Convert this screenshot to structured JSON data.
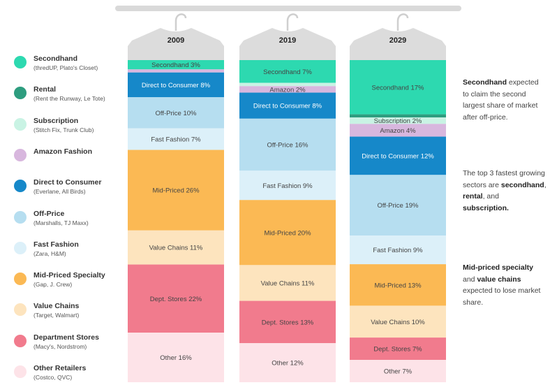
{
  "legend": [
    {
      "key": "secondhand",
      "name": "Secondhand",
      "sub": "(thredUP, Plato's Closet)",
      "color": "#2dd9b0"
    },
    {
      "key": "rental",
      "name": "Rental",
      "sub": "(Rent the Runway, Le Tote)",
      "color": "#2e9d7f"
    },
    {
      "key": "subscription",
      "name": "Subscription",
      "sub": "(Stitch Fix, Trunk Club)",
      "color": "#c9f3e4"
    },
    {
      "key": "amazon",
      "name": "Amazon Fashion",
      "sub": "",
      "color": "#d8b7de"
    },
    {
      "key": "dtc",
      "name": "Direct to Consumer",
      "sub": "(Everlane, All Birds)",
      "color": "#1688c9"
    },
    {
      "key": "offprice",
      "name": "Off-Price",
      "sub": "(Marshalls, TJ Maxx)",
      "color": "#b6def0"
    },
    {
      "key": "fastfashion",
      "name": "Fast Fashion",
      "sub": "(Zara, H&M)",
      "color": "#dcf0f9"
    },
    {
      "key": "midpriced",
      "name": "Mid-Priced Specialty",
      "sub": "(Gap, J. Crew)",
      "color": "#fbb954"
    },
    {
      "key": "valuechains",
      "name": "Value Chains",
      "sub": "(Target, Walmart)",
      "color": "#fde4be"
    },
    {
      "key": "deptstores",
      "name": "Department Stores",
      "sub": "(Macy's, Nordstrom)",
      "color": "#f17b8d"
    },
    {
      "key": "other",
      "name": "Other Retailers",
      "sub": "(Costco, QVC)",
      "color": "#fde3e8"
    }
  ],
  "chart_data": {
    "type": "stacked-bar",
    "categories": [
      "2009",
      "2019",
      "2029"
    ],
    "unit": "%",
    "columns": [
      {
        "year": "2009",
        "segments": [
          {
            "key": "secondhand",
            "label": "Secondhand",
            "value": 3
          },
          {
            "key": "amazon",
            "label": "",
            "value": 1
          },
          {
            "key": "dtc",
            "label": "Direct to Consumer",
            "value": 8
          },
          {
            "key": "offprice",
            "label": "Off-Price",
            "value": 10
          },
          {
            "key": "fastfashion",
            "label": "Fast Fashion",
            "value": 7
          },
          {
            "key": "midpriced",
            "label": "Mid-Priced",
            "value": 26
          },
          {
            "key": "valuechains",
            "label": "Value Chains",
            "value": 11
          },
          {
            "key": "deptstores",
            "label": "Dept. Stores",
            "value": 22
          },
          {
            "key": "other",
            "label": "Other",
            "value": 16
          }
        ]
      },
      {
        "year": "2019",
        "segments": [
          {
            "key": "secondhand",
            "label": "Secondhand",
            "value": 7
          },
          {
            "key": "subscription",
            "label": "",
            "value": 1
          },
          {
            "key": "amazon",
            "label": "Amazon",
            "value": 2
          },
          {
            "key": "dtc",
            "label": "Direct to Consumer",
            "value": 8
          },
          {
            "key": "offprice",
            "label": "Off-Price",
            "value": 16
          },
          {
            "key": "fastfashion",
            "label": "Fast Fashion",
            "value": 9
          },
          {
            "key": "midpriced",
            "label": "Mid-Priced",
            "value": 20
          },
          {
            "key": "valuechains",
            "label": "Value Chains",
            "value": 11
          },
          {
            "key": "deptstores",
            "label": "Dept. Stores",
            "value": 13
          },
          {
            "key": "other",
            "label": "Other",
            "value": 12
          }
        ]
      },
      {
        "year": "2029",
        "segments": [
          {
            "key": "secondhand",
            "label": "Secondhand",
            "value": 17
          },
          {
            "key": "rental",
            "label": "",
            "value": 1
          },
          {
            "key": "subscription",
            "label": "Subscription",
            "value": 2
          },
          {
            "key": "amazon",
            "label": "Amazon",
            "value": 4
          },
          {
            "key": "dtc",
            "label": "Direct to Consumer",
            "value": 12
          },
          {
            "key": "offprice",
            "label": "Off-Price",
            "value": 19
          },
          {
            "key": "fastfashion",
            "label": "Fast Fashion",
            "value": 9
          },
          {
            "key": "midpriced",
            "label": "Mid-Priced",
            "value": 13
          },
          {
            "key": "valuechains",
            "label": "Value Chains",
            "value": 10
          },
          {
            "key": "deptstores",
            "label": "Dept. Stores",
            "value": 7
          },
          {
            "key": "other",
            "label": "Other",
            "value": 7
          }
        ]
      }
    ]
  },
  "notes": {
    "n1_bold": "Secondhand",
    "n1_text": " expected to claim the second largest share of market after off-price.",
    "n2_text": "The top 3 fastest growing sectors are ",
    "n2_b1": "secondhand",
    "n2_sep1": ", ",
    "n2_b2": "rental",
    "n2_sep2": ", and ",
    "n2_b3": "subscription.",
    "n3_b1": "Mid-priced specialty",
    "n3_sep": " and ",
    "n3_b2": "value chains",
    "n3_text": " expected to lose market share."
  }
}
